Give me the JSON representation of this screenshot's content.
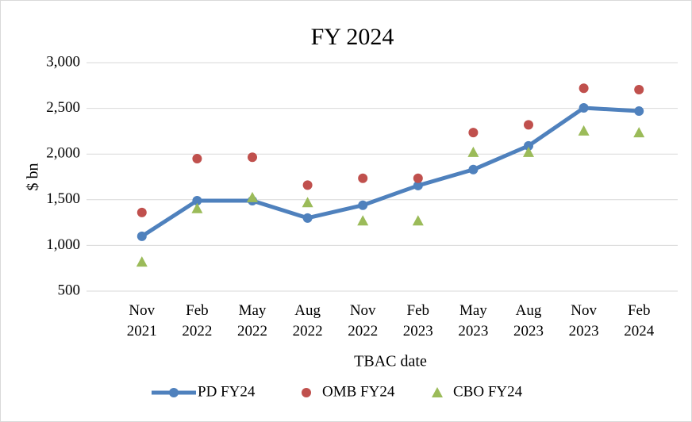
{
  "chart_data": {
    "type": "line",
    "title": "FY 2024",
    "y_label": "$ bn",
    "x_label": "TBAC date",
    "categories": [
      "Nov 2021",
      "Feb 2022",
      "May 2022",
      "Aug 2022",
      "Nov 2022",
      "Feb 2023",
      "May 2023",
      "Aug 2023",
      "Nov 2023",
      "Feb 2024"
    ],
    "series": [
      {
        "name": "PD FY24",
        "color": "#4f81bd",
        "line": true,
        "marker": "circle",
        "values": [
          1100,
          1490,
          1490,
          1300,
          1440,
          1655,
          1830,
          2090,
          2505,
          2470
        ]
      },
      {
        "name": "OMB FY24",
        "color": "#c0504d",
        "line": false,
        "marker": "circle",
        "values": [
          1360,
          1950,
          1965,
          1660,
          1735,
          1735,
          2235,
          2320,
          2720,
          2705
        ]
      },
      {
        "name": "CBO FY24",
        "color": "#9bbb59",
        "line": false,
        "marker": "triangle",
        "values": [
          820,
          1405,
          1525,
          1470,
          1270,
          1270,
          2020,
          2020,
          2255,
          2235
        ]
      }
    ],
    "ylim": [
      500,
      3000
    ],
    "yticks": [
      500,
      {
        "value": 1000,
        "label": "1,000"
      },
      {
        "value": 1500,
        "label": "1,500"
      },
      {
        "value": 2000,
        "label": "2,000"
      },
      {
        "value": 2500,
        "label": "2,500"
      },
      {
        "value": 3000,
        "label": "3,000"
      }
    ],
    "grid": true,
    "legend": "bottom"
  }
}
